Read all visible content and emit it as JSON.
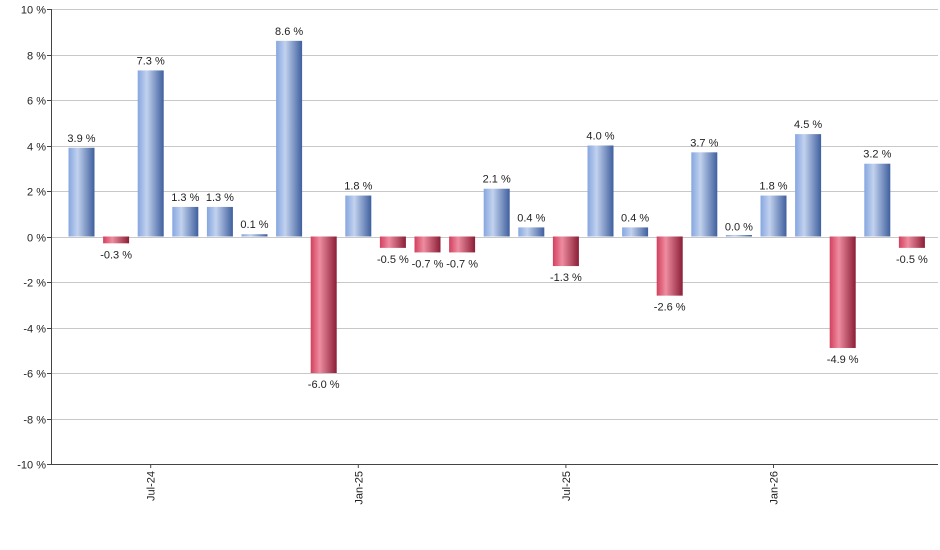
{
  "chart_data": {
    "type": "bar",
    "ylim": [
      -10,
      10
    ],
    "y_tick_step": 2,
    "y_tick_labels": [
      "10 %",
      "8 %",
      "6 %",
      "4 %",
      "2 %",
      "0 %",
      "-2 %",
      "-4 %",
      "-6 %",
      "-8 %",
      "-10 %"
    ],
    "grid": true,
    "legend": "none",
    "x_tick_labels": [
      {
        "label": "Jul-24",
        "index": 2
      },
      {
        "label": "Jan-25",
        "index": 8
      },
      {
        "label": "Jul-25",
        "index": 14
      },
      {
        "label": "Jan-26",
        "index": 20
      }
    ],
    "values": [
      3.9,
      -0.3,
      7.3,
      1.3,
      1.3,
      0.1,
      8.6,
      -6.0,
      1.8,
      -0.5,
      -0.7,
      -0.7,
      2.1,
      0.4,
      -1.3,
      4.0,
      0.4,
      -2.6,
      3.7,
      0.0,
      1.8,
      4.5,
      -4.9,
      3.2,
      -0.5
    ],
    "data_labels": [
      "3.9 %",
      "-0.3 %",
      "7.3 %",
      "1.3 %",
      "1.3 %",
      "0.1 %",
      "8.6 %",
      "-6.0 %",
      "1.8 %",
      "-0.5 %",
      "-0.7 %",
      "-0.7 %",
      "2.1 %",
      "0.4 %",
      "-1.3 %",
      "4.0 %",
      "0.4 %",
      "-2.6 %",
      "3.7 %",
      "0.0 %",
      "1.8 %",
      "4.5 %",
      "-4.9 %",
      "3.2 %",
      "-0.5 %"
    ],
    "colors": {
      "positive_light": "#c2d2ee",
      "positive_mid": "#86a6e0",
      "positive_dark": "#3f5f9e",
      "negative_light": "#ee8ca0",
      "negative_mid": "#d2405e",
      "negative_dark": "#8a1e36",
      "grid": "#c8c8c8",
      "axis": "#444444"
    }
  }
}
